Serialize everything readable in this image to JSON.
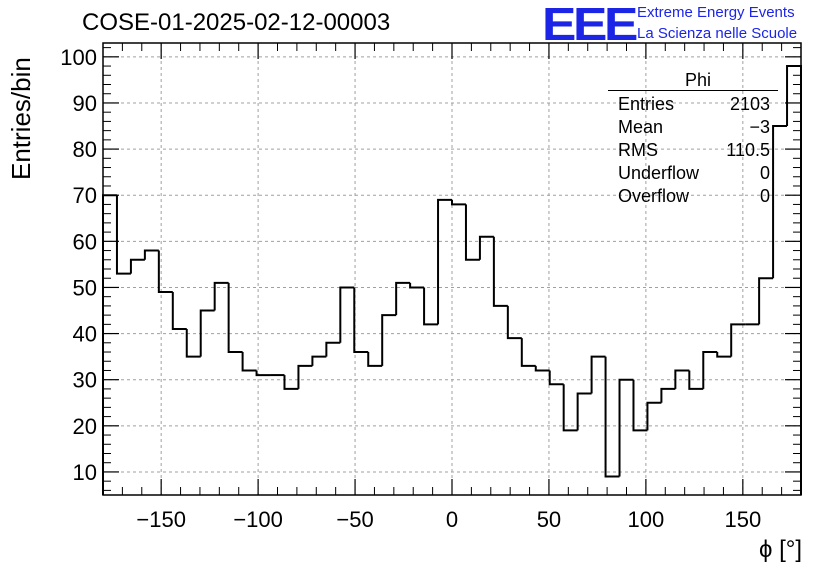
{
  "title": "COSE-01-2025-02-12-00003",
  "logo": {
    "mark": "EEE",
    "line1": "Extreme Energy Events",
    "line2": "La Scienza nelle Scuole",
    "color": "#1c25e6"
  },
  "stats_box": {
    "name": "Phi",
    "rows": [
      {
        "label": "Entries",
        "value": "2103"
      },
      {
        "label": "Mean",
        "value": "−3"
      },
      {
        "label": "RMS",
        "value": "110.5"
      },
      {
        "label": "Underflow",
        "value": "0"
      },
      {
        "label": "Overflow",
        "value": "0"
      }
    ]
  },
  "chart_data": {
    "type": "bar",
    "style": "step-histogram",
    "title": "COSE-01-2025-02-12-00003",
    "xlabel": "ϕ [°]",
    "ylabel": "Entries/bin",
    "xlim": [
      -180,
      180
    ],
    "ylim": [
      5,
      103
    ],
    "bin_width": 7.2,
    "bin_start": -180,
    "values": [
      70,
      53,
      56,
      58,
      49,
      41,
      35,
      45,
      51,
      36,
      32,
      31,
      31,
      28,
      33,
      35,
      38,
      50,
      36,
      33,
      44,
      51,
      50,
      42,
      69,
      68,
      56,
      61,
      46,
      39,
      33,
      32,
      29,
      19,
      27,
      35,
      9,
      30,
      19,
      25,
      28,
      32,
      28,
      36,
      35,
      42,
      42,
      52,
      85,
      98
    ],
    "x_ticks": [
      -150,
      -100,
      -50,
      0,
      50,
      100,
      150
    ],
    "x_tick_labels": [
      "−150",
      "−100",
      "−50",
      "0",
      "50",
      "100",
      "150"
    ],
    "y_ticks": [
      10,
      20,
      30,
      40,
      50,
      60,
      70,
      80,
      90,
      100
    ],
    "y_tick_labels": [
      "10",
      "20",
      "30",
      "40",
      "50",
      "60",
      "70",
      "80",
      "90",
      "100"
    ],
    "grid": true,
    "line_color": "#000000"
  }
}
